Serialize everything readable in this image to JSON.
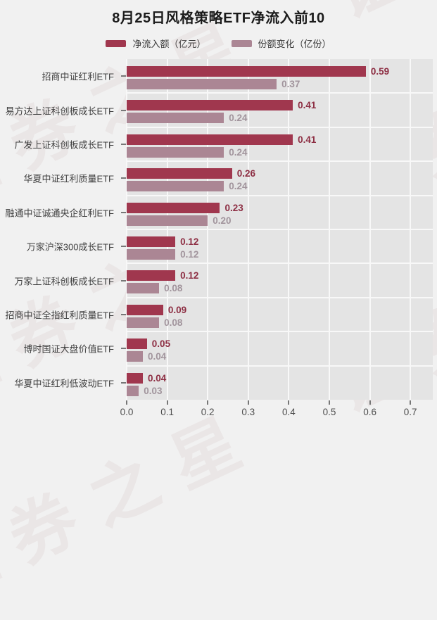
{
  "title": "8月25日风格策略ETF净流入前10",
  "watermark": {
    "text": "证券之星"
  },
  "colors": {
    "page_bg": "#f1f1f1",
    "plot_bg": "#e4e4e4",
    "gridline": "#f8f8f8",
    "net_inflow_bar": "#a0374e",
    "share_change_bar": "#ab8694",
    "net_inflow_value_text": "#8d2e43",
    "share_change_value_text": "#a1949c"
  },
  "chart_data": {
    "type": "bar",
    "orientation": "horizontal",
    "title": "8月25日风格策略ETF净流入前10",
    "legend_position": "top",
    "grid": true,
    "value_decimals": 2,
    "xlim": [
      0,
      0.75
    ],
    "x_ticks": [
      0.0,
      0.1,
      0.2,
      0.3,
      0.4,
      0.5,
      0.6,
      0.7
    ],
    "categories": [
      "招商中证红利ETF",
      "易方达上证科创板成长ETF",
      "广发上证科创板成长ETF",
      "华夏中证红利质量ETF",
      "融通中证诚通央企红利ETF",
      "万家沪深300成长ETF",
      "万家上证科创板成长ETF",
      "招商中证全指红利质量ETF",
      "博时国证大盘价值ETF",
      "华夏中证红利低波动ETF"
    ],
    "series": [
      {
        "name": "净流入额（亿元）",
        "values": [
          0.59,
          0.41,
          0.41,
          0.26,
          0.23,
          0.12,
          0.12,
          0.09,
          0.05,
          0.04
        ]
      },
      {
        "name": "份额变化（亿份）",
        "values": [
          0.37,
          0.24,
          0.24,
          0.24,
          0.2,
          0.12,
          0.08,
          0.08,
          0.04,
          0.03
        ]
      }
    ]
  }
}
